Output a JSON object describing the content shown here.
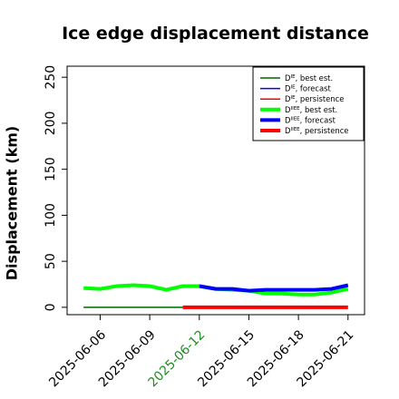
{
  "chart_data": {
    "type": "line",
    "title": "Ice edge displacement distance",
    "xlabel": "",
    "ylabel": "Displacement (km)",
    "ylim": [
      -8,
      262
    ],
    "xlim": [
      "2025-06-04",
      "2025-06-22"
    ],
    "y_ticks": [
      "0",
      "50",
      "100",
      "150",
      "200",
      "250"
    ],
    "y_tick_values": [
      0,
      50,
      100,
      150,
      200,
      250
    ],
    "x_ticks": [
      "2025-06-06",
      "2025-06-09",
      "2025-06-12",
      "2025-06-15",
      "2025-06-18",
      "2025-06-21"
    ],
    "x_tick_values": [
      "2025-06-06",
      "2025-06-09",
      "2025-06-12",
      "2025-06-15",
      "2025-06-18",
      "2025-06-21"
    ],
    "highlighted_x_tick": "2025-06-12",
    "highlight_color": "#228b22",
    "grid": false,
    "legend_position": "top-right",
    "series": [
      {
        "legend": "D^IE, best est.",
        "base": "D",
        "sup": "IE",
        "label_rest": ", best est.",
        "color": "#006400",
        "style": "thin",
        "points": [
          [
            "2025-06-05",
            0
          ],
          [
            "2025-06-11",
            0
          ]
        ]
      },
      {
        "legend": "D^IE, forecast",
        "base": "D",
        "sup": "IE",
        "label_rest": ", forecast",
        "color": "#0000ff",
        "style": "thin",
        "points": []
      },
      {
        "legend": "D^IE, persistence",
        "base": "D",
        "sup": "IE",
        "label_rest": ", persistence",
        "color": "#ff0000",
        "style": "thin",
        "points": []
      },
      {
        "legend": "D^IIEE, best est.",
        "base": "D",
        "sup": "IIEE",
        "label_rest": ", best est.",
        "color": "#00ff00",
        "style": "thick",
        "points": [
          [
            "2025-06-05",
            21
          ],
          [
            "2025-06-06",
            20
          ],
          [
            "2025-06-07",
            23
          ],
          [
            "2025-06-08",
            24
          ],
          [
            "2025-06-09",
            23
          ],
          [
            "2025-06-10",
            19
          ],
          [
            "2025-06-11",
            23
          ],
          [
            "2025-06-12",
            23
          ],
          [
            "2025-06-13",
            20
          ],
          [
            "2025-06-14",
            19
          ],
          [
            "2025-06-15",
            18
          ],
          [
            "2025-06-16",
            15
          ],
          [
            "2025-06-17",
            15
          ],
          [
            "2025-06-18",
            14
          ],
          [
            "2025-06-19",
            14
          ],
          [
            "2025-06-20",
            16
          ],
          [
            "2025-06-21",
            20
          ]
        ]
      },
      {
        "legend": "D^IIEE, forecast",
        "base": "D",
        "sup": "IIEE",
        "label_rest": ", forecast",
        "color": "#0000ff",
        "style": "thick",
        "points": [
          [
            "2025-06-12",
            23
          ],
          [
            "2025-06-13",
            20
          ],
          [
            "2025-06-14",
            20
          ],
          [
            "2025-06-15",
            18
          ],
          [
            "2025-06-16",
            19
          ],
          [
            "2025-06-17",
            19
          ],
          [
            "2025-06-18",
            19
          ],
          [
            "2025-06-19",
            19
          ],
          [
            "2025-06-20",
            20
          ],
          [
            "2025-06-21",
            24
          ]
        ]
      },
      {
        "legend": "D^IIEE, persistence",
        "base": "D",
        "sup": "IIEE",
        "label_rest": ", persistence",
        "color": "#ff0000",
        "style": "thick",
        "points": [
          [
            "2025-06-11",
            0
          ],
          [
            "2025-06-21",
            0
          ]
        ]
      }
    ]
  }
}
